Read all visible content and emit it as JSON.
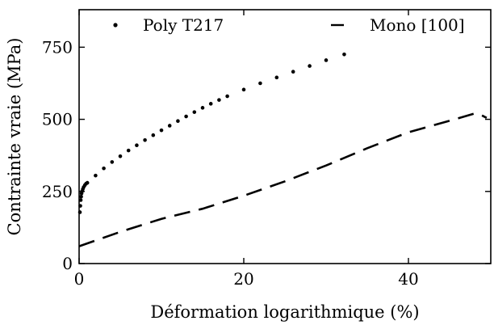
{
  "chart_data": {
    "type": "line",
    "xlabel": "Déformation logarithmique (%)",
    "ylabel": "Contrainte vraie (MPa)",
    "xlim": [
      0,
      50
    ],
    "ylim": [
      0,
      880
    ],
    "xticks": [
      0,
      20,
      40
    ],
    "yticks": [
      0,
      250,
      500,
      750
    ],
    "grid": false,
    "legend_position": "top",
    "series": [
      {
        "name": "Poly T217",
        "style": "dotted",
        "color": "#000000",
        "x": [
          0.1,
          0.15,
          0.2,
          0.25,
          0.3,
          0.35,
          0.45,
          0.55,
          0.7,
          0.85,
          1.0,
          2.0,
          3.0,
          4.0,
          5.0,
          6.0,
          7.0,
          8.0,
          9.0,
          10.0,
          11.0,
          12.0,
          13.0,
          14.0,
          15.0,
          16.0,
          17.0,
          18.0,
          20.0,
          22.0,
          24.0,
          26.0,
          28.0,
          30.0,
          32.2
        ],
        "y": [
          178,
          200,
          220,
          232,
          243,
          250,
          258,
          265,
          272,
          277,
          280,
          305,
          330,
          352,
          372,
          392,
          410,
          428,
          445,
          462,
          478,
          494,
          510,
          525,
          540,
          554,
          567,
          580,
          603,
          625,
          645,
          665,
          685,
          705,
          725
        ]
      },
      {
        "name": "Mono [100]",
        "style": "dashed",
        "color": "#000000",
        "x": [
          0,
          5,
          10,
          15,
          20,
          25,
          30,
          35,
          40,
          45,
          48,
          48.5,
          49.5
        ],
        "y": [
          60,
          110,
          155,
          190,
          235,
          285,
          340,
          400,
          455,
          495,
          520,
          520,
          505
        ]
      }
    ]
  }
}
